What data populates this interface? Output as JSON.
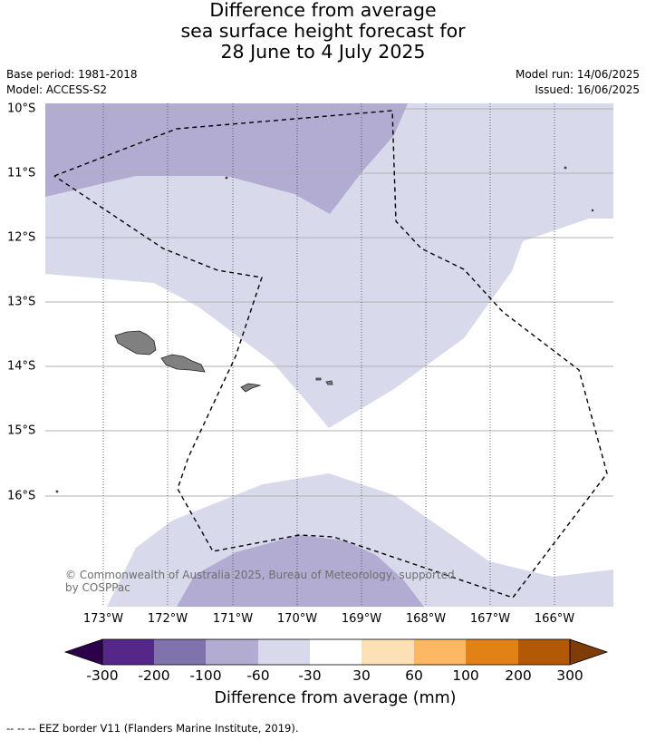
{
  "title": {
    "line1": "Difference from average",
    "line2": "sea surface height forecast for",
    "line3": "28 June to 4 July 2025"
  },
  "meta": {
    "base_period": "Base period: 1981-2018",
    "model": "Model: ACCESS-S2",
    "model_run": "Model run: 14/06/2025",
    "issued": "Issued: 16/06/2025"
  },
  "axes": {
    "lat_labels": [
      "10°S",
      "11°S",
      "12°S",
      "13°S",
      "14°S",
      "15°S",
      "16°S"
    ],
    "lon_labels": [
      "173°W",
      "172°W",
      "171°W",
      "170°W",
      "169°W",
      "168°W",
      "167°W",
      "166°W"
    ]
  },
  "copyright": "© Commonwealth of Australia 2025, Bureau of Meteorology, supported by COSPPac",
  "colorbar": {
    "title": "Difference from average (mm)",
    "ticks": [
      "-300",
      "-200",
      "-100",
      "-60",
      "-30",
      "30",
      "60",
      "100",
      "200",
      "300"
    ],
    "colors": [
      "#2d004b",
      "#542788",
      "#8073ac",
      "#b2abd2",
      "#d8daeb",
      "#ffffff",
      "#fee0b6",
      "#fdb863",
      "#e08214",
      "#b35806",
      "#7f3b08"
    ]
  },
  "footnote": "--  --  -- EEZ border V11 (Flanders Marine Institute, 2019)."
}
